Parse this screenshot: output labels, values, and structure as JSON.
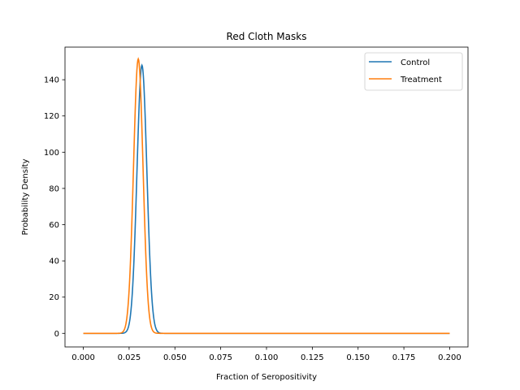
{
  "chart_data": {
    "type": "line",
    "title": "Red Cloth Masks",
    "xlabel": "Fraction of Seropositivity",
    "ylabel": "Probability Density",
    "xlim": [
      -0.01,
      0.21
    ],
    "ylim": [
      -7.5,
      158
    ],
    "xticks": [
      0.0,
      0.025,
      0.05,
      0.075,
      0.1,
      0.125,
      0.15,
      0.175,
      0.2
    ],
    "xtick_labels": [
      "0.000",
      "0.025",
      "0.050",
      "0.075",
      "0.100",
      "0.125",
      "0.150",
      "0.175",
      "0.200"
    ],
    "yticks": [
      0,
      20,
      40,
      60,
      80,
      100,
      120,
      140
    ],
    "ytick_labels": [
      "0",
      "20",
      "40",
      "60",
      "80",
      "100",
      "120",
      "140"
    ],
    "grid": false,
    "legend_position": "top-right",
    "series": [
      {
        "name": "Control",
        "color": "#1f77b4",
        "peak_x": 0.032,
        "peak_y": 148,
        "sd": 0.0027
      },
      {
        "name": "Treatment",
        "color": "#ff7f0e",
        "peak_x": 0.03,
        "peak_y": 151.5,
        "sd": 0.0026
      }
    ],
    "x_range": [
      0.0,
      0.2
    ]
  }
}
